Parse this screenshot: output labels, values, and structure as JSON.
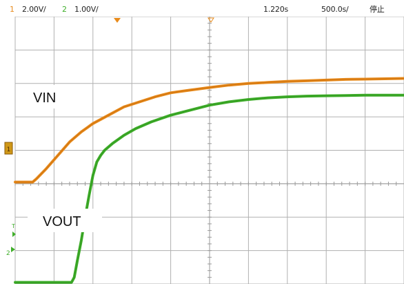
{
  "status": {
    "ch1_number": "1",
    "ch1_scale": "2.00V/",
    "ch2_number": "2",
    "ch2_scale": "1.00V/",
    "time_offset": "1.220s",
    "time_scale": "500.0s/",
    "run_state": "停止"
  },
  "colors": {
    "ch1": "#e88a1a",
    "ch2": "#3fae2a",
    "grid": "#b0b0b0",
    "axis": "#9a9a9a"
  },
  "chart_data": {
    "type": "line",
    "title": "",
    "xlabel": "",
    "ylabel": "",
    "xlim": [
      0,
      10
    ],
    "ylim": [
      -3,
      5
    ],
    "x_unit": "divisions",
    "y_unit": "divisions",
    "grid": true,
    "series": [
      {
        "name": "VIN",
        "channel": "1",
        "color": "#e88a1a",
        "points": [
          [
            0.0,
            0.05
          ],
          [
            0.45,
            0.05
          ],
          [
            0.55,
            0.15
          ],
          [
            0.8,
            0.45
          ],
          [
            1.1,
            0.85
          ],
          [
            1.4,
            1.25
          ],
          [
            1.7,
            1.55
          ],
          [
            2.0,
            1.8
          ],
          [
            2.4,
            2.05
          ],
          [
            2.8,
            2.3
          ],
          [
            3.2,
            2.45
          ],
          [
            3.6,
            2.6
          ],
          [
            4.0,
            2.72
          ],
          [
            4.5,
            2.8
          ],
          [
            5.0,
            2.88
          ],
          [
            5.5,
            2.95
          ],
          [
            6.0,
            3.0
          ],
          [
            6.5,
            3.03
          ],
          [
            7.0,
            3.06
          ],
          [
            7.5,
            3.08
          ],
          [
            8.0,
            3.1
          ],
          [
            8.5,
            3.12
          ],
          [
            9.0,
            3.13
          ],
          [
            9.5,
            3.14
          ],
          [
            10.0,
            3.15
          ]
        ]
      },
      {
        "name": "VOUT",
        "channel": "2",
        "color": "#3fae2a",
        "points": [
          [
            0.0,
            -2.95
          ],
          [
            1.2,
            -2.95
          ],
          [
            1.45,
            -2.95
          ],
          [
            1.52,
            -2.8
          ],
          [
            1.6,
            -2.3
          ],
          [
            1.7,
            -1.7
          ],
          [
            1.8,
            -1.0
          ],
          [
            1.9,
            -0.35
          ],
          [
            2.0,
            0.25
          ],
          [
            2.1,
            0.65
          ],
          [
            2.2,
            0.85
          ],
          [
            2.3,
            1.0
          ],
          [
            2.5,
            1.2
          ],
          [
            2.8,
            1.45
          ],
          [
            3.1,
            1.65
          ],
          [
            3.5,
            1.85
          ],
          [
            4.0,
            2.05
          ],
          [
            4.5,
            2.2
          ],
          [
            5.0,
            2.35
          ],
          [
            5.5,
            2.45
          ],
          [
            6.0,
            2.52
          ],
          [
            6.5,
            2.57
          ],
          [
            7.0,
            2.6
          ],
          [
            7.5,
            2.62
          ],
          [
            8.0,
            2.63
          ],
          [
            8.5,
            2.64
          ],
          [
            9.0,
            2.65
          ],
          [
            9.5,
            2.65
          ],
          [
            10.0,
            2.65
          ]
        ]
      }
    ]
  },
  "labels": {
    "vin": "VIN",
    "vout": "VOUT",
    "ch1_marker": "1",
    "ch2_marker": "2",
    "trigger_marker": "T"
  }
}
